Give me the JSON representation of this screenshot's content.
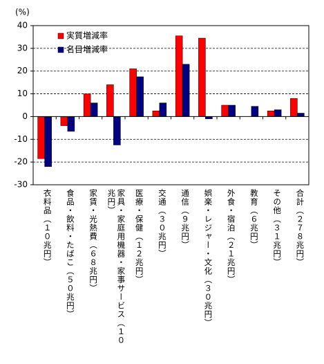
{
  "chart_data": {
    "type": "bar",
    "y_label": "(%)",
    "categories": [
      "衣料品（１０兆円）",
      "食品・飲料・たばこ（５０兆円）",
      "家賃・光熱費（６８兆円）",
      "家具・家庭用機器・家事サービス（１０兆円）",
      "医療・保健（１２兆円）",
      "交通（３０兆円）",
      "通信（９兆円）",
      "娯楽・レジャー・文化（３０兆円）",
      "外食・宿泊（２１兆円）",
      "教育（６兆円）",
      "その他（３１兆円）",
      "合計（２７８兆円）"
    ],
    "series": [
      {
        "name": "実質増減率",
        "color": "#ff0000",
        "values": [
          -18.5,
          -4,
          10,
          14,
          21,
          2.5,
          35.5,
          34.5,
          5,
          0,
          2.5,
          8
        ]
      },
      {
        "name": "名目増減率",
        "color": "#000080",
        "values": [
          -22,
          -6.5,
          6,
          -12.5,
          17.5,
          6,
          23,
          -1,
          5,
          4.5,
          3,
          1.5
        ]
      }
    ],
    "ylim": [
      -30,
      40
    ],
    "yticks": [
      -30,
      -20,
      -10,
      0,
      10,
      20,
      30,
      40
    ],
    "grid": true,
    "legend": "top-left"
  }
}
